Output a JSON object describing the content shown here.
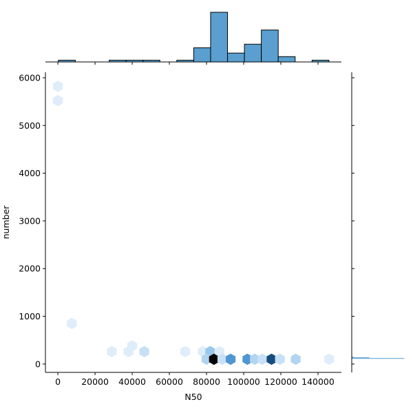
{
  "chart_data": [
    {
      "type": "hexbin",
      "xlabel": "N50",
      "ylabel": "number",
      "x": [
        0,
        0,
        7500,
        29000,
        38000,
        40000,
        46500,
        68500,
        78000,
        82000,
        87000,
        80000,
        84000,
        88500,
        93000,
        102000,
        106000,
        110000,
        115000,
        119500,
        128000,
        146000
      ],
      "y": [
        5820,
        5520,
        850,
        260,
        260,
        380,
        260,
        260,
        260,
        260,
        260,
        100,
        100,
        100,
        100,
        100,
        100,
        100,
        100,
        100,
        100,
        100
      ],
      "counts": [
        1,
        1,
        1,
        1,
        1,
        1,
        2,
        1,
        1,
        4,
        1,
        3,
        20,
        2,
        8,
        8,
        3,
        2,
        14,
        2,
        3,
        1
      ],
      "cmap": [
        "#f5f9fd",
        "#5ea6e2",
        "#18558c",
        "#050505"
      ],
      "xlim": [
        -6700,
        152600
      ],
      "ylim": [
        -175,
        6115
      ],
      "xticks": [
        0,
        20000,
        40000,
        60000,
        80000,
        100000,
        120000,
        140000
      ],
      "yticks": [
        0,
        1000,
        2000,
        3000,
        4000,
        5000,
        6000
      ]
    },
    {
      "type": "histogram",
      "orientation": "vertical",
      "color": "#5a9fcf",
      "bins": [
        300,
        9400,
        18500,
        27600,
        36700,
        45800,
        54900,
        64000,
        73100,
        82200,
        91300,
        100400,
        109500,
        118600,
        127700,
        136800,
        145900
      ],
      "values": [
        1,
        0,
        0,
        1,
        1,
        1,
        0,
        1,
        8,
        28,
        5,
        10,
        18,
        3,
        0,
        1
      ],
      "xlim": [
        -6700,
        152600
      ],
      "ylim": [
        0,
        29.5
      ]
    },
    {
      "type": "histogram",
      "orientation": "horizontal",
      "color": "#5a9fcf",
      "bins": [
        80,
        110,
        125,
        140,
        155
      ],
      "values": [
        0,
        60,
        20,
        2
      ],
      "ylim": [
        -175,
        6115
      ],
      "xlim": [
        0,
        62
      ]
    }
  ]
}
